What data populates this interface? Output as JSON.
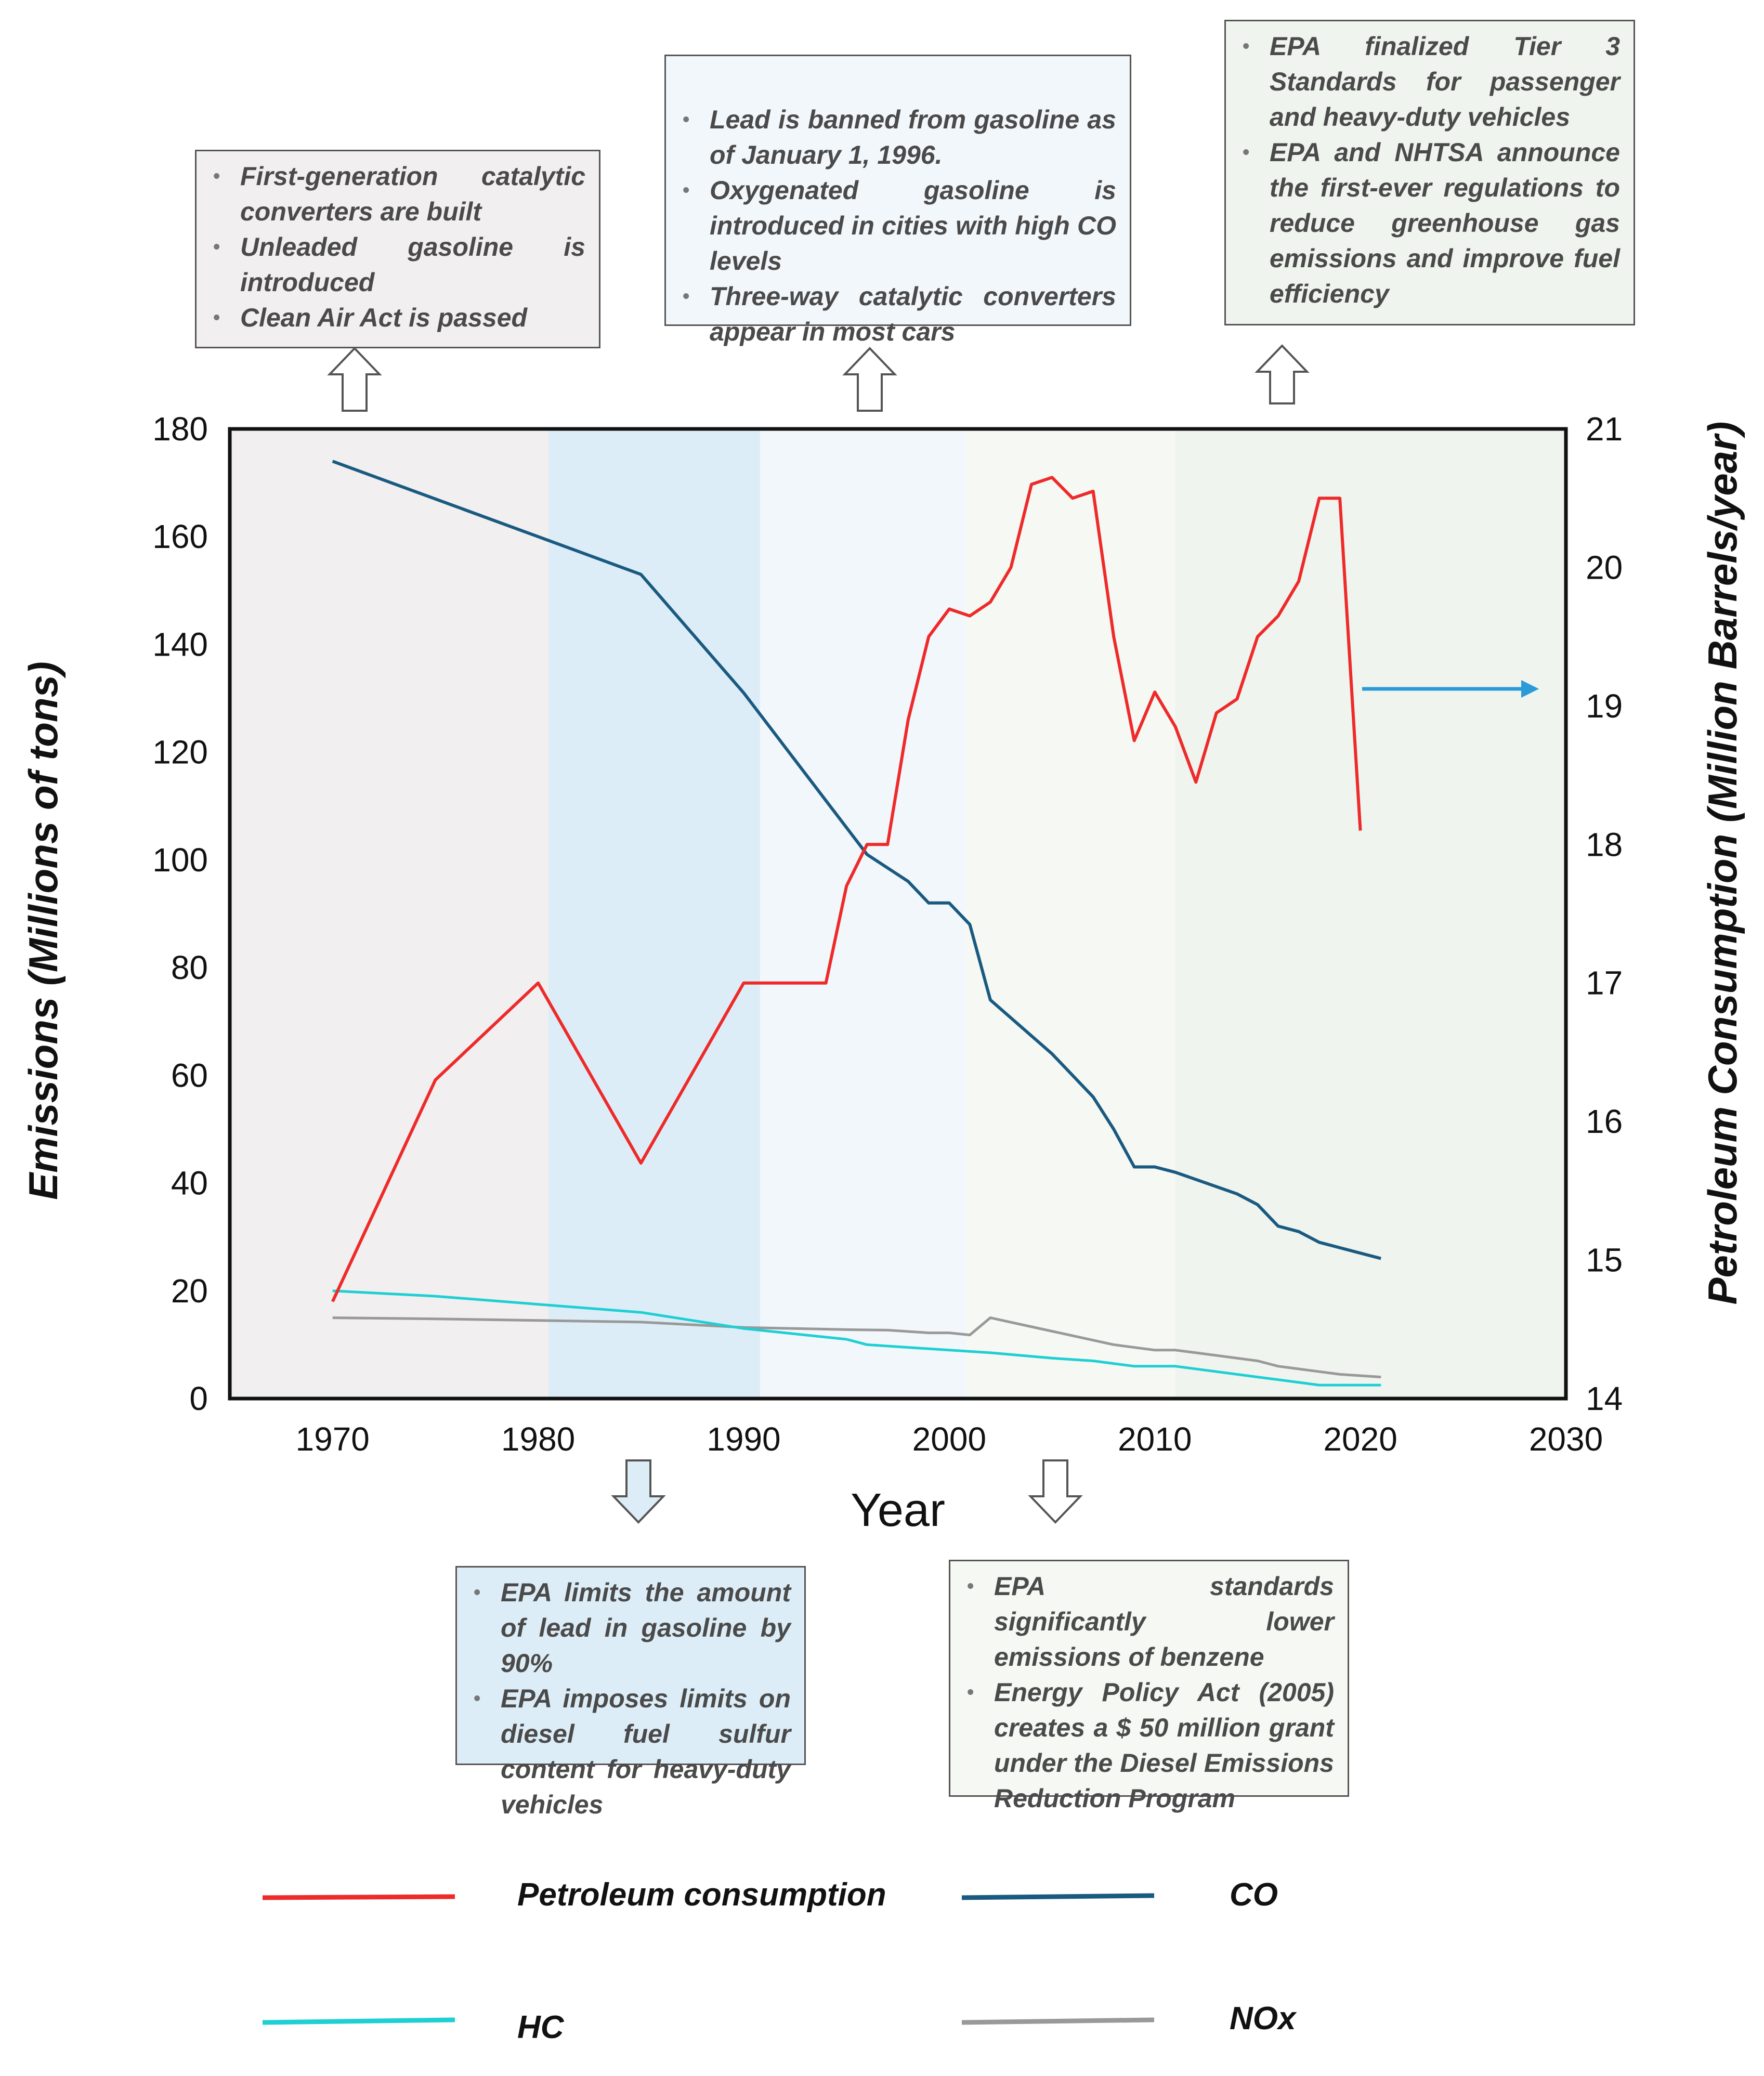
{
  "chart_data": {
    "type": "line",
    "xlabel": "Year",
    "ylabel_left": "Emissions (Millions of tons)",
    "ylabel_right": "Petroleum Consumption (Million Barrels/year)",
    "xlim": [
      1965,
      2030
    ],
    "ylim_left": [
      0,
      180
    ],
    "ylim_right": [
      14,
      21
    ],
    "x_ticks": [
      "1970",
      "1980",
      "1990",
      "2000",
      "2010",
      "2020",
      "2030"
    ],
    "y_left_ticks": [
      "0",
      "20",
      "40",
      "60",
      "80",
      "100",
      "120",
      "140",
      "160",
      "180"
    ],
    "y_right_ticks": [
      "14",
      "15",
      "16",
      "17",
      "18",
      "19",
      "20",
      "21"
    ],
    "grid": false,
    "shaded_periods": [
      {
        "start": 1965,
        "end": 1980.5,
        "color": "#f1efef"
      },
      {
        "start": 1980.5,
        "end": 1990.8,
        "color": "#ddedf7"
      },
      {
        "start": 1990.8,
        "end": 2000.8,
        "color": "#f2f7fb"
      },
      {
        "start": 2000.8,
        "end": 2011,
        "color": "#f5f8f3"
      },
      {
        "start": 2011,
        "end": 2030,
        "color": "#eff4ee"
      }
    ],
    "series": [
      {
        "name": "CO",
        "axis": "left",
        "color": "#1a5a80",
        "x": [
          1970,
          1975,
          1980,
          1985,
          1990,
          1996,
          1998,
          1999,
          2000,
          2001,
          2002,
          2005,
          2007,
          2008,
          2009,
          2010,
          2011,
          2014,
          2015,
          2016,
          2017,
          2018,
          2019,
          2021
        ],
        "y": [
          174,
          167,
          160,
          153,
          131,
          101,
          96,
          92,
          92,
          88,
          74,
          64,
          56,
          50,
          43,
          43,
          42,
          38,
          36,
          32,
          31,
          29,
          28,
          26
        ]
      },
      {
        "name": "Petroleum consumption",
        "axis": "right",
        "color": "#ee2a2a",
        "x": [
          1970,
          1975,
          1980,
          1985,
          1990,
          1991,
          1994,
          1995,
          1996,
          1997,
          1998,
          1999,
          2000,
          2001,
          2002,
          2003,
          2004,
          2005,
          2006,
          2007,
          2008,
          2009,
          2010,
          2011,
          2012,
          2013,
          2014,
          2015,
          2016,
          2017,
          2018,
          2019,
          2020
        ],
        "y": [
          14.7,
          16.3,
          17.0,
          15.7,
          17.0,
          17.0,
          17.0,
          17.7,
          18.0,
          18.0,
          18.9,
          19.5,
          19.7,
          19.65,
          19.75,
          20.0,
          20.6,
          20.65,
          20.5,
          20.55,
          19.5,
          18.75,
          19.1,
          18.85,
          18.45,
          18.95,
          19.05,
          19.5,
          19.65,
          19.9,
          20.5,
          20.5,
          18.1
        ]
      },
      {
        "name": "HC",
        "axis": "left",
        "color": "#1ecfd3",
        "x": [
          1970,
          1975,
          1980,
          1985,
          1990,
          1995,
          1996,
          1998,
          2000,
          2002,
          2005,
          2007,
          2009,
          2011,
          2013,
          2015,
          2016,
          2017,
          2018,
          2019,
          2021
        ],
        "y": [
          20,
          19,
          17.5,
          16,
          13,
          11,
          10,
          9.5,
          9,
          8.5,
          7.5,
          7,
          6,
          6,
          5,
          4,
          3.5,
          3,
          2.5,
          2.5,
          2.5
        ]
      },
      {
        "name": "NOx",
        "axis": "left",
        "color": "#999999",
        "x": [
          1970,
          1975,
          1980,
          1985,
          1990,
          1995,
          1997,
          1999,
          2000,
          2001,
          2002,
          2005,
          2008,
          2010,
          2011,
          2012,
          2015,
          2016,
          2017,
          2018,
          2019,
          2021
        ],
        "y": [
          15,
          14.8,
          14.5,
          14.2,
          13.2,
          12.8,
          12.7,
          12.2,
          12.2,
          11.8,
          15,
          12.5,
          10,
          9,
          9,
          8.5,
          7,
          6,
          5.5,
          5,
          4.5,
          4
        ]
      }
    ],
    "legend": [
      {
        "label": "Petroleum consumption",
        "color": "#ee2a2a"
      },
      {
        "label": "CO",
        "color": "#1a5a80"
      },
      {
        "label": "HC",
        "color": "#1ecfd3"
      },
      {
        "label": "NOx",
        "color": "#999999"
      }
    ]
  },
  "annotations": {
    "box_1970": {
      "items": [
        "First-generation catalytic converters are built",
        "Unleaded gasoline is introduced",
        "Clean Air Act is passed"
      ]
    },
    "box_1995": {
      "items": [
        "Lead is banned from gasoline as of January 1, 1996.",
        "Oxygenated gasoline is introduced in cities with high CO levels",
        "Three-way catalytic converters appear in most cars"
      ]
    },
    "box_2015": {
      "items": [
        "EPA finalized Tier 3 Standards for passenger and heavy-duty vehicles",
        "EPA and NHTSA announce the first-ever regulations to reduce greenhouse gas emissions and improve fuel efficiency"
      ]
    },
    "box_1985": {
      "items": [
        "EPA limits the amount of lead in gasoline by 90%",
        "EPA imposes limits on diesel fuel sulfur content for heavy-duty vehicles"
      ]
    },
    "box_2005": {
      "items": [
        "EPA standards significantly lower emissions of benzene",
        "Energy Policy Act (2005) creates a $ 50 million grant under the Diesel Emissions Reduction Program"
      ]
    }
  },
  "colors": {
    "box_1970_bg": "#f1efef",
    "box_1995_bg": "#f2f7fb",
    "box_2015_bg": "#eff4ee",
    "box_1985_bg": "#ddedf7",
    "box_2005_bg": "#f5f8f3",
    "indicator_arrow": "#2a9ad8"
  }
}
